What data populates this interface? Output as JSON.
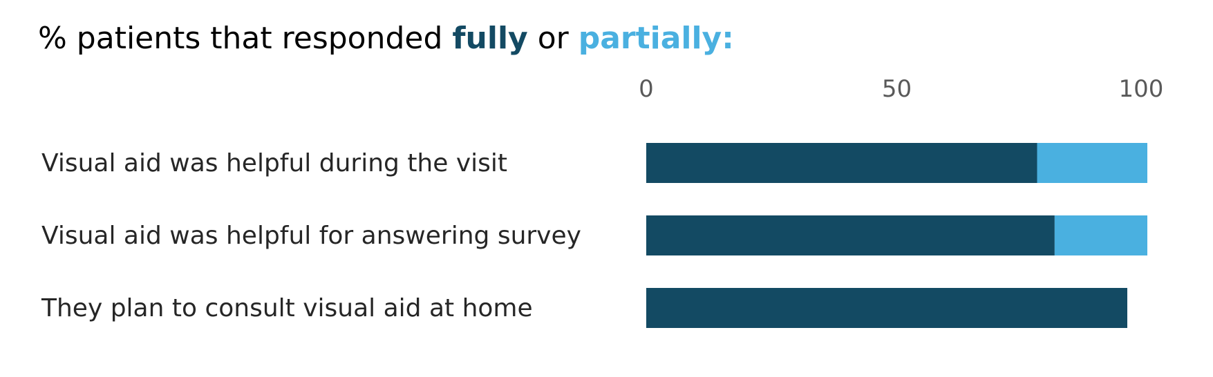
{
  "chart_data": {
    "type": "bar",
    "orientation": "horizontal",
    "stacked": true,
    "title": {
      "prefix": "% patients that responded ",
      "fully": "fully",
      "middle": " or ",
      "partially": "partially:"
    },
    "categories": [
      "Visual aid was helpful during the visit",
      "Visual aid was helpful for answering survey",
      "They plan to consult visual aid at home"
    ],
    "series": [
      {
        "key": "fully",
        "values": [
          78,
          81.5,
          96
        ],
        "color": "#134A63"
      },
      {
        "key": "partially",
        "values": [
          22,
          18.5,
          0
        ],
        "color": "#4AB0E0"
      }
    ],
    "xlim": [
      0,
      100
    ],
    "xticks": [
      0,
      50,
      100
    ],
    "xaxis_position": "top",
    "grid": false,
    "legend": "none"
  }
}
